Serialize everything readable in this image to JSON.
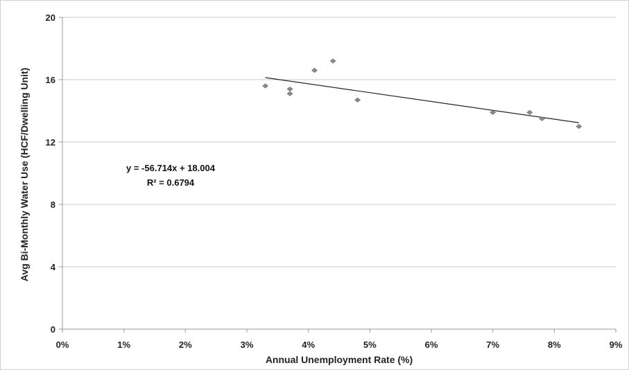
{
  "chart_data": {
    "type": "scatter",
    "title": "",
    "xlabel": "Annual Unemployment Rate (%)",
    "ylabel": "Avg Bi-Monthly Water Use (HCF/Dwelling Unit)",
    "xlim": [
      0,
      0.09
    ],
    "ylim": [
      0,
      20
    ],
    "x_ticks": [
      0,
      0.01,
      0.02,
      0.03,
      0.04,
      0.05,
      0.06,
      0.07,
      0.08,
      0.09
    ],
    "x_tick_labels": [
      "0%",
      "1%",
      "2%",
      "3%",
      "4%",
      "5%",
      "6%",
      "7%",
      "8%",
      "9%"
    ],
    "y_ticks": [
      0,
      4,
      8,
      12,
      16,
      20
    ],
    "y_tick_labels": [
      "0",
      "4",
      "8",
      "12",
      "16",
      "20"
    ],
    "grid": "horizontal",
    "points": [
      {
        "x": 0.033,
        "y": 15.6
      },
      {
        "x": 0.037,
        "y": 15.4
      },
      {
        "x": 0.037,
        "y": 15.1
      },
      {
        "x": 0.041,
        "y": 16.6
      },
      {
        "x": 0.044,
        "y": 17.2
      },
      {
        "x": 0.048,
        "y": 14.7
      },
      {
        "x": 0.07,
        "y": 13.9
      },
      {
        "x": 0.076,
        "y": 13.9
      },
      {
        "x": 0.078,
        "y": 13.5
      },
      {
        "x": 0.084,
        "y": 13.0
      }
    ],
    "trendline": {
      "slope": -56.714,
      "intercept": 18.004,
      "x_start": 0.033,
      "x_end": 0.084
    },
    "annotations": {
      "equation": "y = -56.714x + 18.004",
      "r_squared": "R² = 0.6794"
    },
    "colors": {
      "point": "#8a8a8a",
      "trendline": "#222222",
      "grid": "#c8c8c8",
      "axis": "#999999"
    }
  }
}
